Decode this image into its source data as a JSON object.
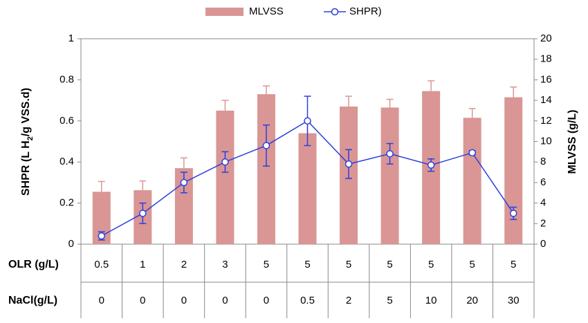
{
  "chart_data": {
    "type": "bar_line",
    "y_label": [
      "SHPR (L H",
      "2",
      "/g VSS.d)"
    ],
    "y2_label": "MLVSS (g/L)",
    "category_rows": [
      {
        "label": "OLR (g/L)",
        "values": [
          "0.5",
          "1",
          "2",
          "3",
          "5",
          "5",
          "5",
          "5",
          "5",
          "5",
          "5"
        ]
      },
      {
        "label": "NaCl(g/L)",
        "values": [
          "0",
          "0",
          "0",
          "0",
          "0",
          "0.5",
          "2",
          "5",
          "10",
          "20",
          "30"
        ]
      }
    ],
    "series": [
      {
        "name": "MLVSS",
        "type": "bar",
        "axis": "y2",
        "color": "#d99694",
        "values": [
          5.1,
          5.25,
          7.4,
          13.0,
          14.6,
          10.8,
          13.4,
          13.3,
          14.9,
          12.3,
          14.3
        ],
        "errors": [
          1.0,
          0.9,
          1.0,
          1.0,
          0.8,
          1.0,
          1.0,
          0.8,
          1.0,
          0.9,
          1.0
        ]
      },
      {
        "name": "SHPR)",
        "type": "line",
        "axis": "y",
        "color": "#2a3fe0",
        "values": [
          0.04,
          0.15,
          0.3,
          0.4,
          0.48,
          0.6,
          0.39,
          0.44,
          0.385,
          0.445,
          0.15
        ],
        "errors": [
          0.02,
          0.05,
          0.05,
          0.05,
          0.1,
          0.12,
          0.07,
          0.05,
          0.03,
          0.01,
          0.03
        ]
      }
    ],
    "ylim": [
      0,
      1
    ],
    "yticks": [
      0,
      0.2,
      0.4,
      0.6,
      0.8,
      1
    ],
    "y2lim": [
      0,
      20
    ],
    "y2ticks": [
      0,
      2,
      4,
      6,
      8,
      10,
      12,
      14,
      16,
      18,
      20
    ]
  }
}
